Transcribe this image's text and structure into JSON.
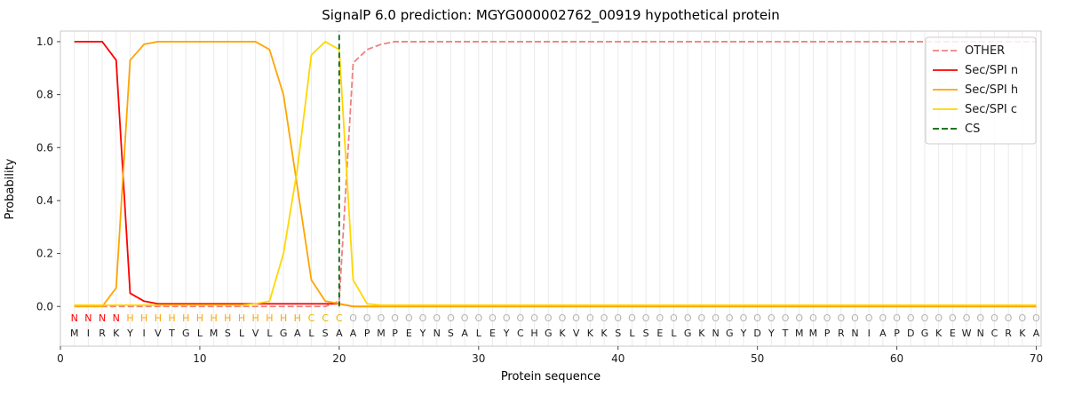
{
  "title": "SignalP 6.0 prediction: MGYG000002762_00919 hypothetical protein",
  "chart_data": {
    "type": "line",
    "title": "SignalP 6.0 prediction: MGYG000002762_00919 hypothetical protein",
    "xlabel": "Protein sequence",
    "ylabel": "Probability",
    "xlim": [
      0,
      70.35
    ],
    "ylim": [
      -0.15,
      1.04
    ],
    "xticks": [
      0,
      10,
      20,
      30,
      40,
      50,
      60,
      70
    ],
    "yticks": [
      0.0,
      0.2,
      0.4,
      0.6,
      0.8,
      1.0
    ],
    "grid": "vertical line per residue, light gray",
    "legend_position": "upper right",
    "x_start": 1,
    "sequence": "MIRKYIVTGLMSLVLGALSAAPMPEYNSALEYCHGKVKKSLSELGKNGYDYTMMPRNIAPDGKEWNCRKA",
    "region_labels": "NNNNHHHHHHHHHHHHHCCCOOOOOOOOOOOOOOOOOOOOOOOOOOOOOOOOOOOOOOOOOOOOOOOOOO",
    "region_colors": {
      "N": "#ff0000",
      "H": "#ffa500",
      "C": "#e6b400",
      "O": "#b3b3b3"
    },
    "sequence_color": "#1a1a1a",
    "cs": {
      "name": "CS",
      "x": 20,
      "color": "#006400",
      "dash": true
    },
    "series": [
      {
        "name": "OTHER",
        "color": "#f08080",
        "dash": true,
        "values": [
          0,
          0,
          0,
          0,
          0,
          0,
          0,
          0,
          0,
          0,
          0,
          0,
          0,
          0,
          0,
          0,
          0,
          0,
          0,
          0.02,
          0.92,
          0.97,
          0.99,
          1,
          1,
          1,
          1,
          1,
          1,
          1,
          1,
          1,
          1,
          1,
          1,
          1,
          1,
          1,
          1,
          1,
          1,
          1,
          1,
          1,
          1,
          1,
          1,
          1,
          1,
          1,
          1,
          1,
          1,
          1,
          1,
          1,
          1,
          1,
          1,
          1,
          1,
          1,
          1,
          1,
          1,
          1,
          1,
          1,
          1,
          1
        ]
      },
      {
        "name": "Sec/SPI n",
        "color": "#ff0000",
        "dash": false,
        "values": [
          1,
          1,
          1,
          0.93,
          0.05,
          0.02,
          0.01,
          0.01,
          0.01,
          0.01,
          0.01,
          0.01,
          0.01,
          0.01,
          0.01,
          0.01,
          0.01,
          0.01,
          0.01,
          0.01,
          0,
          0,
          0,
          0,
          0,
          0,
          0,
          0,
          0,
          0,
          0,
          0,
          0,
          0,
          0,
          0,
          0,
          0,
          0,
          0,
          0,
          0,
          0,
          0,
          0,
          0,
          0,
          0,
          0,
          0,
          0,
          0,
          0,
          0,
          0,
          0,
          0,
          0,
          0,
          0,
          0,
          0,
          0,
          0,
          0,
          0,
          0,
          0,
          0,
          0
        ]
      },
      {
        "name": "Sec/SPI h",
        "color": "#ffa500",
        "dash": false,
        "values": [
          0,
          0,
          0,
          0.07,
          0.93,
          0.99,
          1,
          1,
          1,
          1,
          1,
          1,
          1,
          1,
          0.97,
          0.8,
          0.45,
          0.1,
          0.02,
          0.01,
          0,
          0,
          0,
          0,
          0,
          0,
          0,
          0,
          0,
          0,
          0,
          0,
          0,
          0,
          0,
          0,
          0,
          0,
          0,
          0,
          0,
          0,
          0,
          0,
          0,
          0,
          0,
          0,
          0,
          0,
          0,
          0,
          0,
          0,
          0,
          0,
          0,
          0,
          0,
          0,
          0,
          0,
          0,
          0,
          0,
          0,
          0,
          0,
          0,
          0
        ]
      },
      {
        "name": "Sec/SPI c",
        "color": "#ffd700",
        "dash": false,
        "values": [
          0.005,
          0.005,
          0.005,
          0.005,
          0.005,
          0.005,
          0.005,
          0.005,
          0.005,
          0.005,
          0.005,
          0.005,
          0.005,
          0.01,
          0.02,
          0.2,
          0.52,
          0.95,
          1,
          0.97,
          0.1,
          0.01,
          0.005,
          0.005,
          0.005,
          0.005,
          0.005,
          0.005,
          0.005,
          0.005,
          0.005,
          0.005,
          0.005,
          0.005,
          0.005,
          0.005,
          0.005,
          0.005,
          0.005,
          0.005,
          0.005,
          0.005,
          0.005,
          0.005,
          0.005,
          0.005,
          0.005,
          0.005,
          0.005,
          0.005,
          0.005,
          0.005,
          0.005,
          0.005,
          0.005,
          0.005,
          0.005,
          0.005,
          0.005,
          0.005,
          0.005,
          0.005,
          0.005,
          0.005,
          0.005,
          0.005,
          0.005,
          0.005,
          0.005,
          0.005
        ]
      }
    ]
  }
}
